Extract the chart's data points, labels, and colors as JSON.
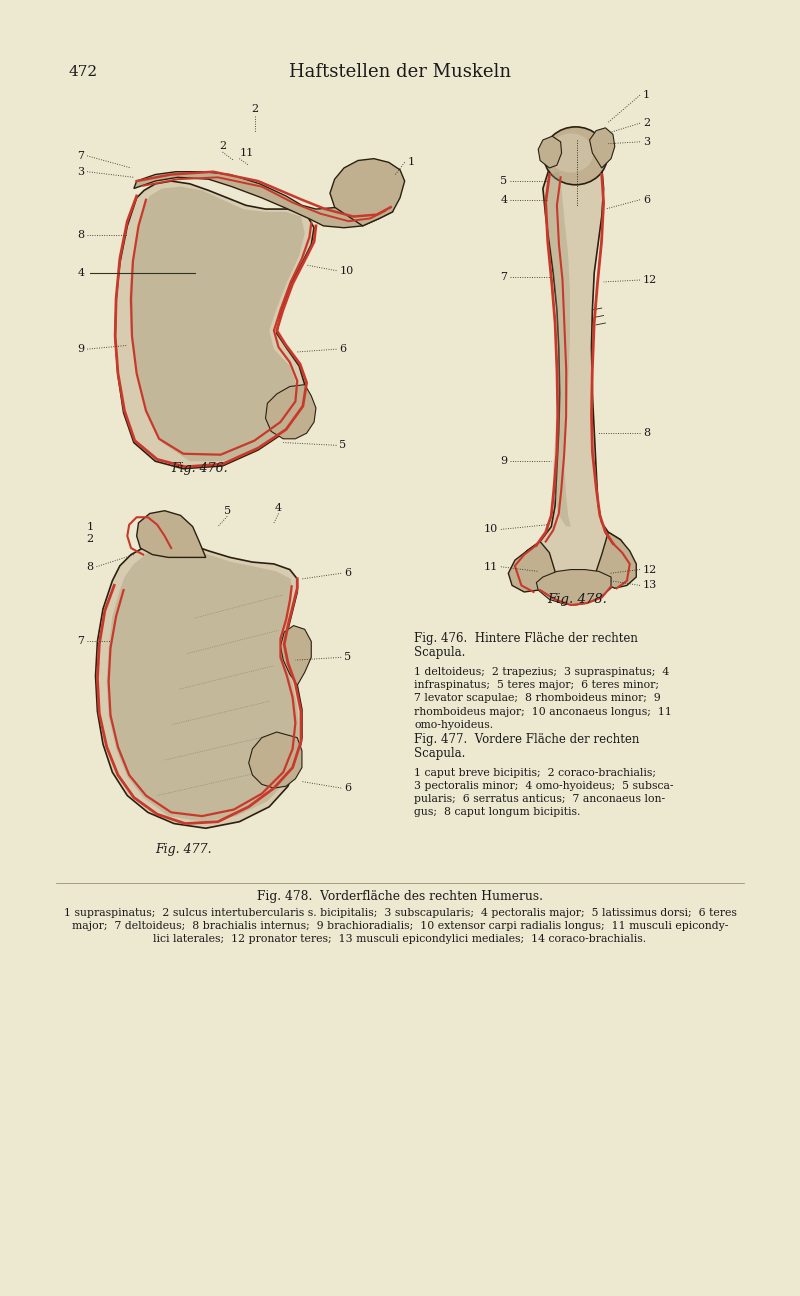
{
  "background_color": "#ede8d0",
  "page_number": "472",
  "page_title": "Haftstellen der Muskeln",
  "fig476_label": "Fig. 476.",
  "fig477_label": "Fig. 477.",
  "fig478_label": "Fig. 478.",
  "fig476_title_line1": "Fig. 476.  Hintere Fläche der rechten",
  "fig476_title_line2": "Scapula.",
  "fig476_body": "1 deltoideus;  2 trapezius;  3 supraspinatus;  4\ninfraspinatus;  5 teres major;  6 teres minor;\n7 levator scapulae;  8 rhomboideus minor;  9\nrhomboideus major;  10 anconaeus longus;  11\nomo-hyoideus.",
  "fig477_title_line1": "Fig. 477.  Vordere Fläche der rechten",
  "fig477_title_line2": "Scapula.",
  "fig477_body": "1 caput breve bicipitis;  2 coraco-brachialis;\n3 pectoralis minor;  4 omo-hyoideus;  5 subsca-\npularis;  6 serratus anticus;  7 anconaeus lon-\ngus;  8 caput longum bicipitis.",
  "fig478_title": "Fig. 478.  Vorderfläche des rechten Humerus.",
  "fig478_body_line1": "1 supraspinatus;  2 sulcus intertubercularis s. bicipitalis;  3 subscapularis;  4 pectoralis major;  5 latissimus dorsi;  6 teres",
  "fig478_body_line2": "major;  7 deltoideus;  8 brachialis internus;  9 brachioradialis;  10 extensor carpi radialis longus;  11 musculi epicondy-",
  "fig478_body_line3": "lici laterales;  12 pronator teres;  13 musculi epicondylici mediales;  14 coraco-brachialis.",
  "text_color": "#1a1a1a",
  "red_color": "#c8392b",
  "bone_light": "#d8ccb0",
  "bone_mid": "#c0b090",
  "bone_dark": "#8a7860",
  "bone_edge": "#2a2010",
  "shade_color": "#9a9070"
}
